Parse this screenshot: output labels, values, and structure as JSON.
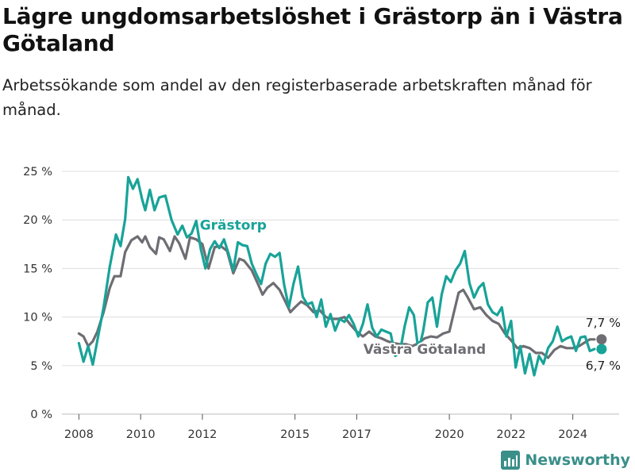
{
  "title": "Lägre ungdomsarbetslöshet i Grästorp än i Västra Götaland",
  "subtitle": "Arbetssökande som andel av den registerbaserade arbetskraften månad för månad.",
  "brand": {
    "name": "Newsworthy",
    "icon": "bar-chart-logo-icon"
  },
  "colors": {
    "grastorp": "#18a398",
    "vastra": "#6e6d73",
    "grid": "#dddddd",
    "axis": "#555555"
  },
  "chart_data": {
    "type": "line",
    "ylim": [
      0,
      25
    ],
    "xlim": [
      2007.45,
      2025.5
    ],
    "y_ticks": [
      0,
      5,
      10,
      15,
      20,
      25
    ],
    "y_tick_labels": [
      "0 %",
      "5 %",
      "10 %",
      "15 %",
      "20 %",
      "25 %"
    ],
    "x_ticks": [
      2008,
      2010,
      2012,
      2015,
      2017,
      2020,
      2022,
      2024
    ],
    "x_tick_labels": [
      "2008",
      "2010",
      "2012",
      "2015",
      "2017",
      "2020",
      "2022",
      "2024"
    ],
    "grid": true,
    "series": [
      {
        "name": "Grästorp",
        "key": "grastorp",
        "end_label": "6,7 %",
        "points": [
          [
            2008.0,
            7.3
          ],
          [
            2008.15,
            5.4
          ],
          [
            2008.3,
            7.0
          ],
          [
            2008.45,
            5.1
          ],
          [
            2008.6,
            7.6
          ],
          [
            2008.8,
            11.0
          ],
          [
            2009.0,
            15.2
          ],
          [
            2009.2,
            18.5
          ],
          [
            2009.35,
            17.3
          ],
          [
            2009.5,
            20.1
          ],
          [
            2009.6,
            24.4
          ],
          [
            2009.75,
            23.2
          ],
          [
            2009.9,
            24.2
          ],
          [
            2010.05,
            22.1
          ],
          [
            2010.15,
            21.0
          ],
          [
            2010.3,
            23.1
          ],
          [
            2010.45,
            21.0
          ],
          [
            2010.6,
            22.3
          ],
          [
            2010.8,
            22.5
          ],
          [
            2011.0,
            20.0
          ],
          [
            2011.2,
            18.5
          ],
          [
            2011.35,
            19.4
          ],
          [
            2011.5,
            18.2
          ],
          [
            2011.65,
            18.6
          ],
          [
            2011.8,
            19.9
          ],
          [
            2011.95,
            17.0
          ],
          [
            2012.1,
            15.0
          ],
          [
            2012.25,
            17.0
          ],
          [
            2012.4,
            17.8
          ],
          [
            2012.55,
            17.1
          ],
          [
            2012.7,
            18.0
          ],
          [
            2012.85,
            16.5
          ],
          [
            2013.0,
            14.8
          ],
          [
            2013.15,
            17.7
          ],
          [
            2013.3,
            17.4
          ],
          [
            2013.45,
            17.3
          ],
          [
            2013.6,
            15.5
          ],
          [
            2013.75,
            14.4
          ],
          [
            2013.9,
            13.4
          ],
          [
            2014.05,
            15.5
          ],
          [
            2014.2,
            16.5
          ],
          [
            2014.35,
            16.2
          ],
          [
            2014.5,
            16.6
          ],
          [
            2014.65,
            13.3
          ],
          [
            2014.8,
            11.0
          ],
          [
            2014.95,
            13.4
          ],
          [
            2015.1,
            15.2
          ],
          [
            2015.25,
            12.1
          ],
          [
            2015.4,
            11.3
          ],
          [
            2015.55,
            11.5
          ],
          [
            2015.7,
            10.0
          ],
          [
            2015.85,
            11.8
          ],
          [
            2016.0,
            9.0
          ],
          [
            2016.15,
            10.3
          ],
          [
            2016.3,
            8.6
          ],
          [
            2016.45,
            9.8
          ],
          [
            2016.6,
            9.5
          ],
          [
            2016.75,
            10.2
          ],
          [
            2016.9,
            9.3
          ],
          [
            2017.05,
            8.0
          ],
          [
            2017.2,
            9.3
          ],
          [
            2017.35,
            11.3
          ],
          [
            2017.5,
            8.9
          ],
          [
            2017.65,
            8.0
          ],
          [
            2017.8,
            8.7
          ],
          [
            2017.95,
            8.5
          ],
          [
            2018.1,
            8.3
          ],
          [
            2018.25,
            6.0
          ],
          [
            2018.4,
            6.4
          ],
          [
            2018.55,
            9.0
          ],
          [
            2018.7,
            11.0
          ],
          [
            2018.85,
            10.2
          ],
          [
            2019.0,
            6.5
          ],
          [
            2019.15,
            8.5
          ],
          [
            2019.3,
            11.5
          ],
          [
            2019.45,
            12.0
          ],
          [
            2019.6,
            9.0
          ],
          [
            2019.75,
            12.3
          ],
          [
            2019.9,
            14.2
          ],
          [
            2020.05,
            13.6
          ],
          [
            2020.2,
            14.8
          ],
          [
            2020.35,
            15.5
          ],
          [
            2020.5,
            16.8
          ],
          [
            2020.65,
            13.5
          ],
          [
            2020.8,
            12.0
          ],
          [
            2020.95,
            13.0
          ],
          [
            2021.1,
            13.5
          ],
          [
            2021.25,
            11.3
          ],
          [
            2021.4,
            10.5
          ],
          [
            2021.55,
            10.2
          ],
          [
            2021.7,
            11.0
          ],
          [
            2021.85,
            8.0
          ],
          [
            2022.0,
            9.6
          ],
          [
            2022.15,
            4.8
          ],
          [
            2022.3,
            7.0
          ],
          [
            2022.45,
            4.2
          ],
          [
            2022.6,
            6.2
          ],
          [
            2022.75,
            4.0
          ],
          [
            2022.9,
            6.0
          ],
          [
            2023.05,
            5.2
          ],
          [
            2023.2,
            6.8
          ],
          [
            2023.35,
            7.5
          ],
          [
            2023.5,
            9.0
          ],
          [
            2023.65,
            7.5
          ],
          [
            2023.8,
            7.8
          ],
          [
            2023.95,
            8.0
          ],
          [
            2024.1,
            6.5
          ],
          [
            2024.25,
            7.9
          ],
          [
            2024.4,
            8.0
          ],
          [
            2024.55,
            6.5
          ],
          [
            2024.7,
            6.7
          ]
        ]
      },
      {
        "name": "Västra Götaland",
        "key": "vastra",
        "end_label": "7,7 %",
        "points": [
          [
            2008.0,
            8.3
          ],
          [
            2008.15,
            8.0
          ],
          [
            2008.3,
            7.0
          ],
          [
            2008.45,
            7.5
          ],
          [
            2008.6,
            8.5
          ],
          [
            2008.8,
            10.5
          ],
          [
            2009.0,
            13.0
          ],
          [
            2009.15,
            14.2
          ],
          [
            2009.35,
            14.2
          ],
          [
            2009.5,
            16.7
          ],
          [
            2009.7,
            17.9
          ],
          [
            2009.9,
            18.3
          ],
          [
            2010.05,
            17.7
          ],
          [
            2010.15,
            18.3
          ],
          [
            2010.3,
            17.2
          ],
          [
            2010.5,
            16.5
          ],
          [
            2010.6,
            18.2
          ],
          [
            2010.75,
            18.0
          ],
          [
            2010.95,
            16.8
          ],
          [
            2011.1,
            18.3
          ],
          [
            2011.25,
            17.6
          ],
          [
            2011.45,
            16.0
          ],
          [
            2011.6,
            18.2
          ],
          [
            2011.8,
            18.0
          ],
          [
            2012.0,
            17.5
          ],
          [
            2012.2,
            15.0
          ],
          [
            2012.4,
            17.2
          ],
          [
            2012.6,
            17.3
          ],
          [
            2012.8,
            16.8
          ],
          [
            2013.0,
            14.5
          ],
          [
            2013.2,
            16.0
          ],
          [
            2013.35,
            15.8
          ],
          [
            2013.6,
            14.8
          ],
          [
            2013.8,
            13.4
          ],
          [
            2013.95,
            12.3
          ],
          [
            2014.1,
            13.0
          ],
          [
            2014.3,
            13.5
          ],
          [
            2014.5,
            12.8
          ],
          [
            2014.7,
            11.5
          ],
          [
            2014.85,
            10.5
          ],
          [
            2015.0,
            11.0
          ],
          [
            2015.2,
            11.6
          ],
          [
            2015.4,
            11.2
          ],
          [
            2015.6,
            10.5
          ],
          [
            2015.8,
            10.7
          ],
          [
            2016.0,
            10.0
          ],
          [
            2016.2,
            9.8
          ],
          [
            2016.4,
            9.8
          ],
          [
            2016.6,
            10.0
          ],
          [
            2016.8,
            9.2
          ],
          [
            2017.0,
            8.5
          ],
          [
            2017.2,
            8.0
          ],
          [
            2017.4,
            8.5
          ],
          [
            2017.6,
            8.0
          ],
          [
            2017.8,
            7.8
          ],
          [
            2018.0,
            7.5
          ],
          [
            2018.2,
            7.3
          ],
          [
            2018.4,
            7.2
          ],
          [
            2018.6,
            7.2
          ],
          [
            2018.8,
            7.0
          ],
          [
            2019.0,
            7.3
          ],
          [
            2019.2,
            7.8
          ],
          [
            2019.4,
            8.0
          ],
          [
            2019.6,
            7.9
          ],
          [
            2019.8,
            8.3
          ],
          [
            2020.0,
            8.5
          ],
          [
            2020.15,
            10.5
          ],
          [
            2020.3,
            12.5
          ],
          [
            2020.45,
            12.8
          ],
          [
            2020.6,
            12.0
          ],
          [
            2020.8,
            10.8
          ],
          [
            2021.0,
            11.0
          ],
          [
            2021.2,
            10.2
          ],
          [
            2021.4,
            9.6
          ],
          [
            2021.6,
            9.3
          ],
          [
            2021.8,
            8.3
          ],
          [
            2022.0,
            7.6
          ],
          [
            2022.2,
            6.8
          ],
          [
            2022.4,
            7.0
          ],
          [
            2022.6,
            6.8
          ],
          [
            2022.8,
            6.3
          ],
          [
            2023.0,
            6.3
          ],
          [
            2023.2,
            5.8
          ],
          [
            2023.4,
            6.6
          ],
          [
            2023.6,
            7.0
          ],
          [
            2023.8,
            6.8
          ],
          [
            2024.0,
            6.8
          ],
          [
            2024.2,
            7.0
          ],
          [
            2024.4,
            7.4
          ],
          [
            2024.55,
            7.7
          ],
          [
            2024.7,
            7.7
          ]
        ]
      }
    ],
    "annotations": [
      {
        "series": "Grästorp",
        "text": "Grästorp",
        "x": 2013.0,
        "y": 19.0
      },
      {
        "series": "Västra Götaland",
        "text": "Västra Götaland",
        "x": 2019.2,
        "y": 6.2
      }
    ]
  }
}
